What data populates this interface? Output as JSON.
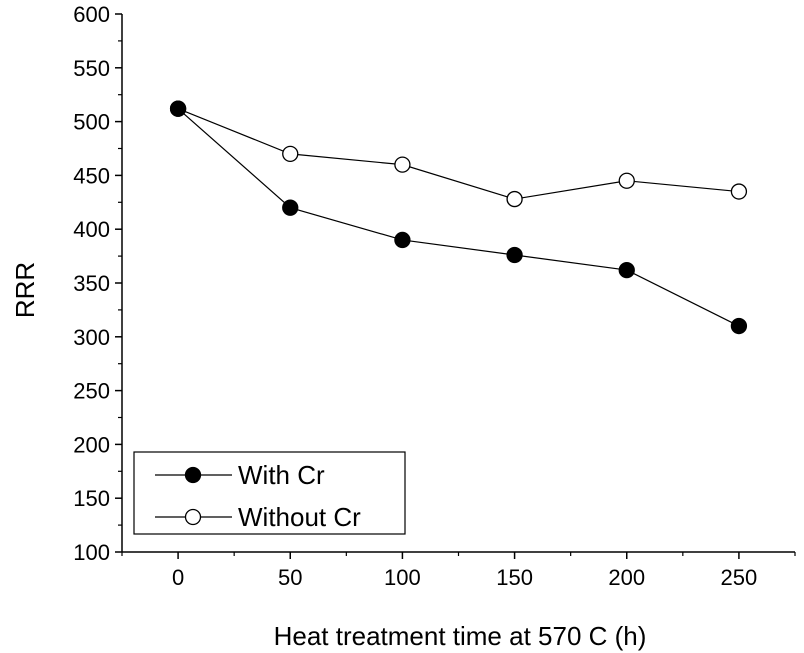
{
  "chart_data": {
    "type": "line",
    "title": "",
    "xlabel": "Heat treatment time at 570 C (h)",
    "ylabel": "RRR",
    "x": [
      0,
      50,
      100,
      150,
      200,
      250
    ],
    "xlim": [
      -25,
      275
    ],
    "ylim": [
      100,
      600
    ],
    "xticks": [
      "0",
      "50",
      "100",
      "150",
      "200",
      "250"
    ],
    "yticks": [
      "100",
      "150",
      "200",
      "250",
      "300",
      "350",
      "400",
      "450",
      "500",
      "550",
      "600"
    ],
    "grid": false,
    "legend_position": "bottom-left",
    "series": [
      {
        "name": "With Cr",
        "marker": "filled-circle",
        "color": "#000000",
        "values": [
          512,
          420,
          390,
          376,
          362,
          310
        ]
      },
      {
        "name": "Without Cr",
        "marker": "open-circle",
        "color": "#000000",
        "values": [
          512,
          470,
          460,
          428,
          445,
          435
        ]
      }
    ]
  }
}
